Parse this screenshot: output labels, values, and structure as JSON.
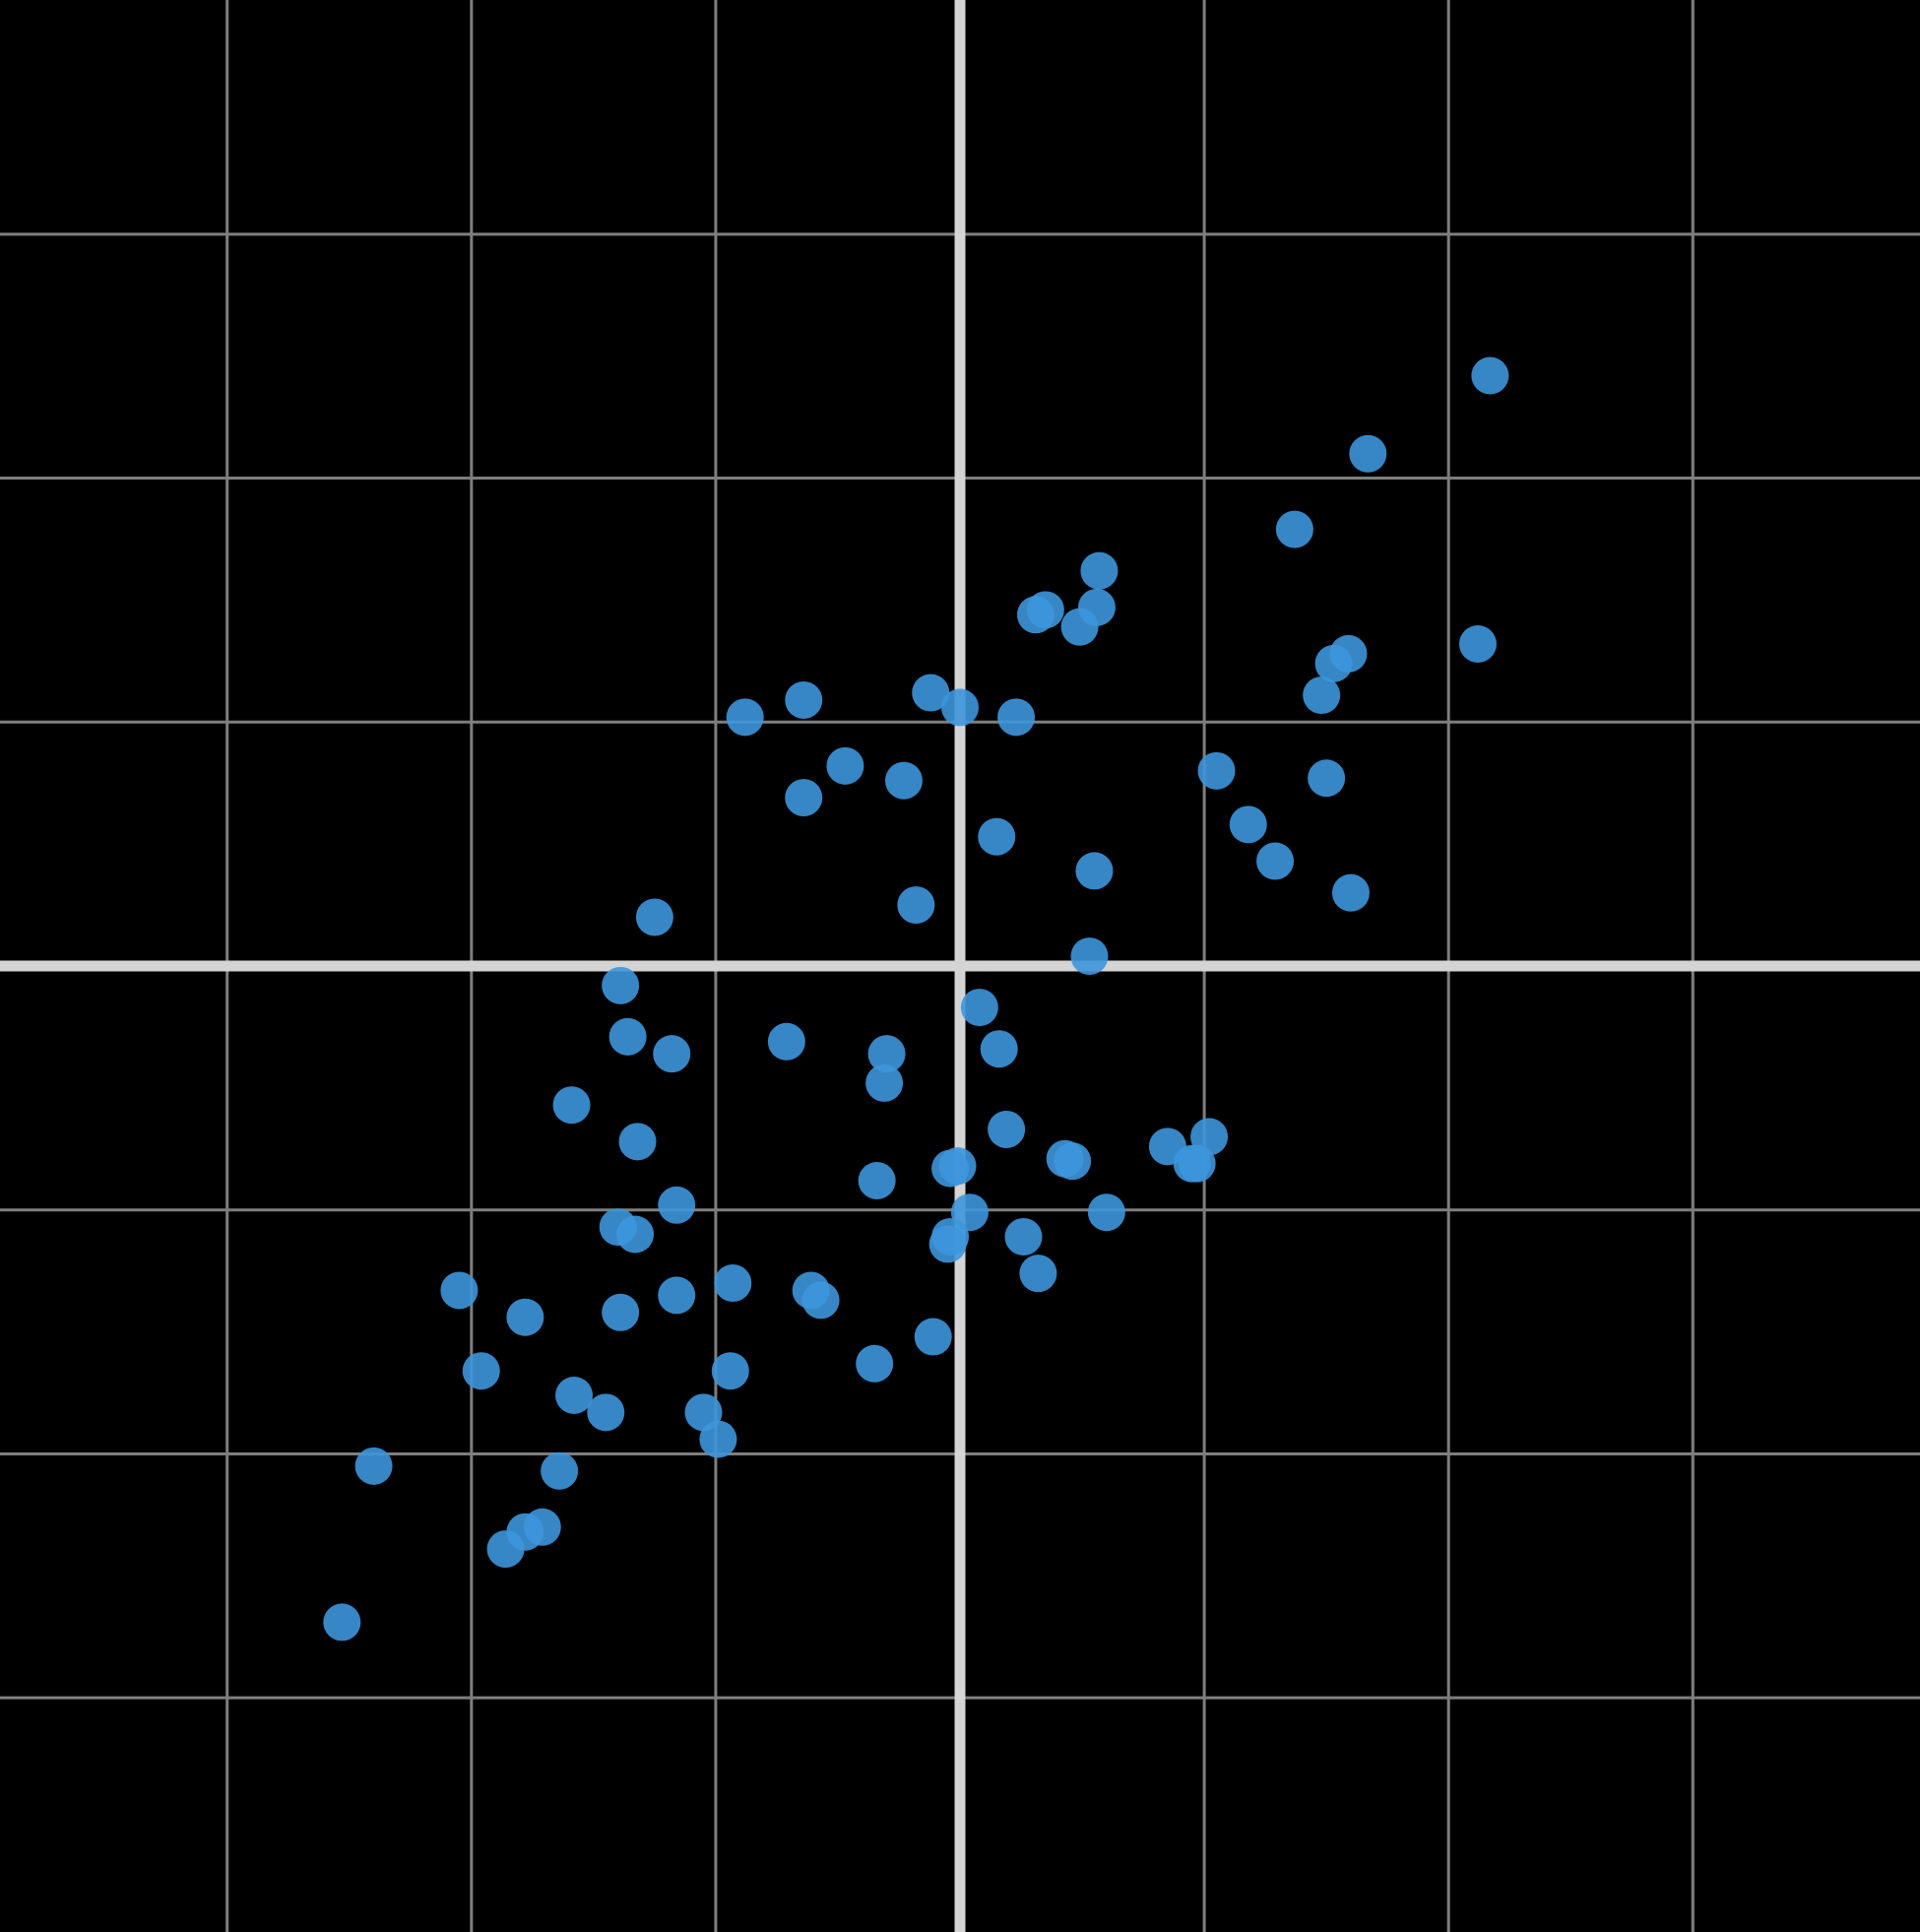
{
  "chart_data": {
    "type": "scatter",
    "title": "",
    "xlabel": "",
    "ylabel": "",
    "xlim": [
      -3.93,
      3.93
    ],
    "ylim": [
      -3.96,
      3.96
    ],
    "grid": true,
    "grid_step": 1,
    "axes_through_origin": true,
    "colors": {
      "background": "#000000",
      "grid": "#7f7f7f",
      "axis": "#d4d4d4",
      "points": "#3d96dc"
    },
    "series": [
      {
        "points": [
          [
            2.17,
            2.42
          ],
          [
            1.67,
            2.1
          ],
          [
            1.37,
            1.79
          ],
          [
            0.57,
            1.62
          ],
          [
            0.31,
            1.44
          ],
          [
            0.35,
            1.46
          ],
          [
            0.56,
            1.47
          ],
          [
            0.49,
            1.39
          ],
          [
            1.59,
            1.28
          ],
          [
            1.53,
            1.24
          ],
          [
            1.48,
            1.11
          ],
          [
            2.12,
            1.32
          ],
          [
            -0.88,
            1.02
          ],
          [
            -0.64,
            1.09
          ],
          [
            -0.12,
            1.12
          ],
          [
            0.0,
            1.06
          ],
          [
            0.23,
            1.02
          ],
          [
            -0.47,
            0.82
          ],
          [
            -0.23,
            0.76
          ],
          [
            -0.64,
            0.69
          ],
          [
            1.05,
            0.8
          ],
          [
            1.5,
            0.77
          ],
          [
            1.18,
            0.58
          ],
          [
            1.29,
            0.43
          ],
          [
            1.6,
            0.3
          ],
          [
            0.15,
            0.53
          ],
          [
            0.55,
            0.39
          ],
          [
            -1.25,
            0.2
          ],
          [
            -0.18,
            0.25
          ],
          [
            0.53,
            0.04
          ],
          [
            -1.39,
            -0.08
          ],
          [
            -1.36,
            -0.29
          ],
          [
            -1.18,
            -0.36
          ],
          [
            -0.71,
            -0.31
          ],
          [
            -0.3,
            -0.36
          ],
          [
            -0.31,
            -0.48
          ],
          [
            0.08,
            -0.17
          ],
          [
            0.16,
            -0.34
          ],
          [
            -1.59,
            -0.57
          ],
          [
            -1.32,
            -0.72
          ],
          [
            0.19,
            -0.67
          ],
          [
            0.85,
            -0.74
          ],
          [
            0.95,
            -0.81
          ],
          [
            1.02,
            -0.7
          ],
          [
            0.97,
            -0.81
          ],
          [
            0.43,
            -0.79
          ],
          [
            0.46,
            -0.8
          ],
          [
            -0.01,
            -0.82
          ],
          [
            -0.04,
            -0.83
          ],
          [
            -0.34,
            -0.88
          ],
          [
            -1.16,
            -0.98
          ],
          [
            -1.4,
            -1.07
          ],
          [
            -1.33,
            -1.1
          ],
          [
            0.04,
            -1.01
          ],
          [
            0.6,
            -1.01
          ],
          [
            -0.04,
            -1.11
          ],
          [
            -0.05,
            -1.14
          ],
          [
            0.26,
            -1.11
          ],
          [
            0.32,
            -1.26
          ],
          [
            -2.05,
            -1.33
          ],
          [
            -1.78,
            -1.44
          ],
          [
            -1.39,
            -1.42
          ],
          [
            -1.16,
            -1.35
          ],
          [
            -0.93,
            -1.3
          ],
          [
            -0.61,
            -1.33
          ],
          [
            -0.57,
            -1.37
          ],
          [
            -0.11,
            -1.52
          ],
          [
            -0.35,
            -1.63
          ],
          [
            -0.94,
            -1.66
          ],
          [
            -1.96,
            -1.66
          ],
          [
            -1.58,
            -1.76
          ],
          [
            -1.45,
            -1.83
          ],
          [
            -1.05,
            -1.83
          ],
          [
            -0.99,
            -1.94
          ],
          [
            -2.4,
            -2.05
          ],
          [
            -1.64,
            -2.07
          ],
          [
            -1.78,
            -2.32
          ],
          [
            -1.71,
            -2.3
          ],
          [
            -1.86,
            -2.39
          ],
          [
            -2.53,
            -2.69
          ]
        ]
      }
    ]
  }
}
